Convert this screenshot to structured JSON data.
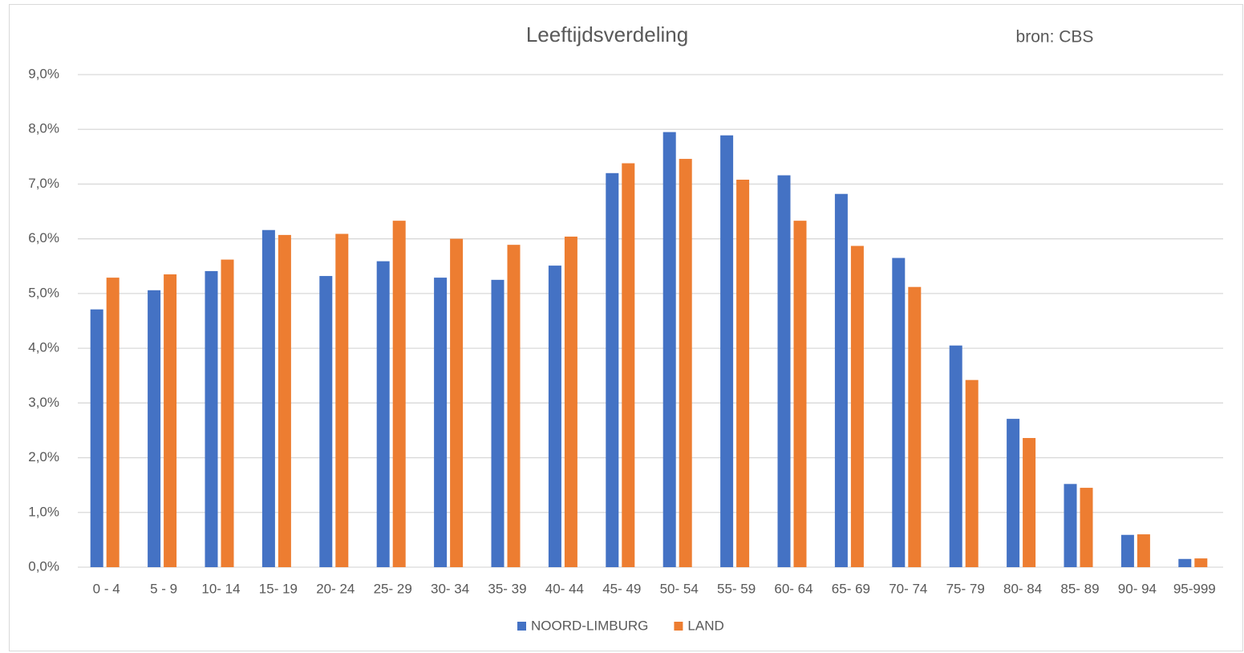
{
  "chart_data": {
    "type": "bar",
    "title": "Leeftijdsverdeling",
    "annotation": "bron: CBS",
    "categories": [
      "0 - 4",
      "5 - 9",
      "10- 14",
      "15- 19",
      "20- 24",
      "25- 29",
      "30- 34",
      "35- 39",
      "40- 44",
      "45- 49",
      "50- 54",
      "55- 59",
      "60- 64",
      "65- 69",
      "70- 74",
      "75- 79",
      "80- 84",
      "85- 89",
      "90- 94",
      "95-999"
    ],
    "series": [
      {
        "name": "NOORD-LIMBURG",
        "color": "#4472c4",
        "values": [
          4.71,
          5.06,
          5.41,
          6.16,
          5.32,
          5.59,
          5.29,
          5.25,
          5.51,
          7.2,
          7.95,
          7.89,
          7.16,
          6.82,
          5.65,
          4.05,
          2.71,
          1.52,
          0.59,
          0.15
        ]
      },
      {
        "name": "LAND",
        "color": "#ed7d31",
        "values": [
          5.29,
          5.35,
          5.62,
          6.07,
          6.09,
          6.33,
          6.0,
          5.89,
          6.04,
          7.38,
          7.46,
          7.08,
          6.33,
          5.87,
          5.12,
          3.42,
          2.36,
          1.45,
          0.6,
          0.16
        ]
      }
    ],
    "ylim": [
      0,
      9
    ],
    "yticks": [
      {
        "value": 0,
        "label": "0,0%"
      },
      {
        "value": 1,
        "label": "1,0%"
      },
      {
        "value": 2,
        "label": "2,0%"
      },
      {
        "value": 3,
        "label": "3,0%"
      },
      {
        "value": 4,
        "label": "4,0%"
      },
      {
        "value": 5,
        "label": "5,0%"
      },
      {
        "value": 6,
        "label": "6,0%"
      },
      {
        "value": 7,
        "label": "7,0%"
      },
      {
        "value": 8,
        "label": "8,0%"
      },
      {
        "value": 9,
        "label": "9,0%"
      }
    ],
    "grid": true,
    "legend": "bottom"
  }
}
